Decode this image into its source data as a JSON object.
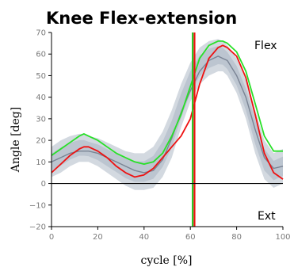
{
  "chart_data": {
    "type": "line",
    "title": "Knee Flex-extension",
    "xlabel": "cycle [%]",
    "ylabel": "Angle [deg]",
    "xlim": [
      0,
      100
    ],
    "ylim": [
      -20,
      70
    ],
    "x_ticks": [
      0,
      20,
      40,
      60,
      80,
      100
    ],
    "y_ticks": [
      -20,
      -10,
      0,
      10,
      20,
      30,
      40,
      50,
      60,
      70
    ],
    "annotations": {
      "top_right": "Flex",
      "bottom_right": "Ext"
    },
    "x": [
      0,
      4,
      8,
      12,
      14,
      16,
      20,
      24,
      28,
      32,
      36,
      40,
      44,
      48,
      52,
      56,
      60,
      64,
      68,
      72,
      74,
      76,
      80,
      84,
      88,
      92,
      96,
      100
    ],
    "normative_band": {
      "color": "#c4ccd6",
      "outer_lower": [
        3,
        5,
        8,
        10,
        10,
        10,
        8,
        5,
        2,
        -1,
        -3,
        -3,
        -2,
        3,
        12,
        26,
        38,
        46,
        50,
        52,
        52,
        50,
        42,
        30,
        14,
        2,
        -2,
        0
      ],
      "outer_upper": [
        17,
        20,
        22,
        23,
        23,
        22,
        21,
        19,
        17,
        15,
        14,
        14,
        17,
        24,
        34,
        46,
        56,
        63,
        66,
        67,
        66,
        64,
        58,
        48,
        34,
        20,
        14,
        16
      ]
    },
    "series": [
      {
        "color": "#7a8494",
        "values": [
          10,
          12,
          14,
          15,
          15,
          15,
          14,
          12,
          10,
          8,
          6,
          5,
          6,
          11,
          21,
          33,
          43,
          52,
          57,
          59,
          58,
          57,
          50,
          40,
          25,
          12,
          7,
          8
        ]
      },
      {
        "color": "#28e028",
        "values": [
          13,
          16,
          19,
          22,
          23,
          22,
          20,
          17,
          14,
          12,
          10,
          9,
          10,
          14,
          22,
          32,
          45,
          58,
          64,
          66,
          66,
          65,
          61,
          52,
          37,
          22,
          15,
          15
        ]
      },
      {
        "color": "#ee1111",
        "values": [
          5,
          9,
          13,
          16,
          17,
          17,
          15,
          12,
          8,
          5,
          3,
          4,
          7,
          12,
          17,
          22,
          30,
          46,
          58,
          63,
          64,
          63,
          59,
          49,
          32,
          14,
          5,
          2
        ]
      }
    ],
    "vertical_markers": [
      {
        "x": 61.0,
        "color": "#28c828"
      },
      {
        "x": 61.8,
        "color": "#ee1111"
      }
    ],
    "zero_line": true,
    "grid": false
  }
}
